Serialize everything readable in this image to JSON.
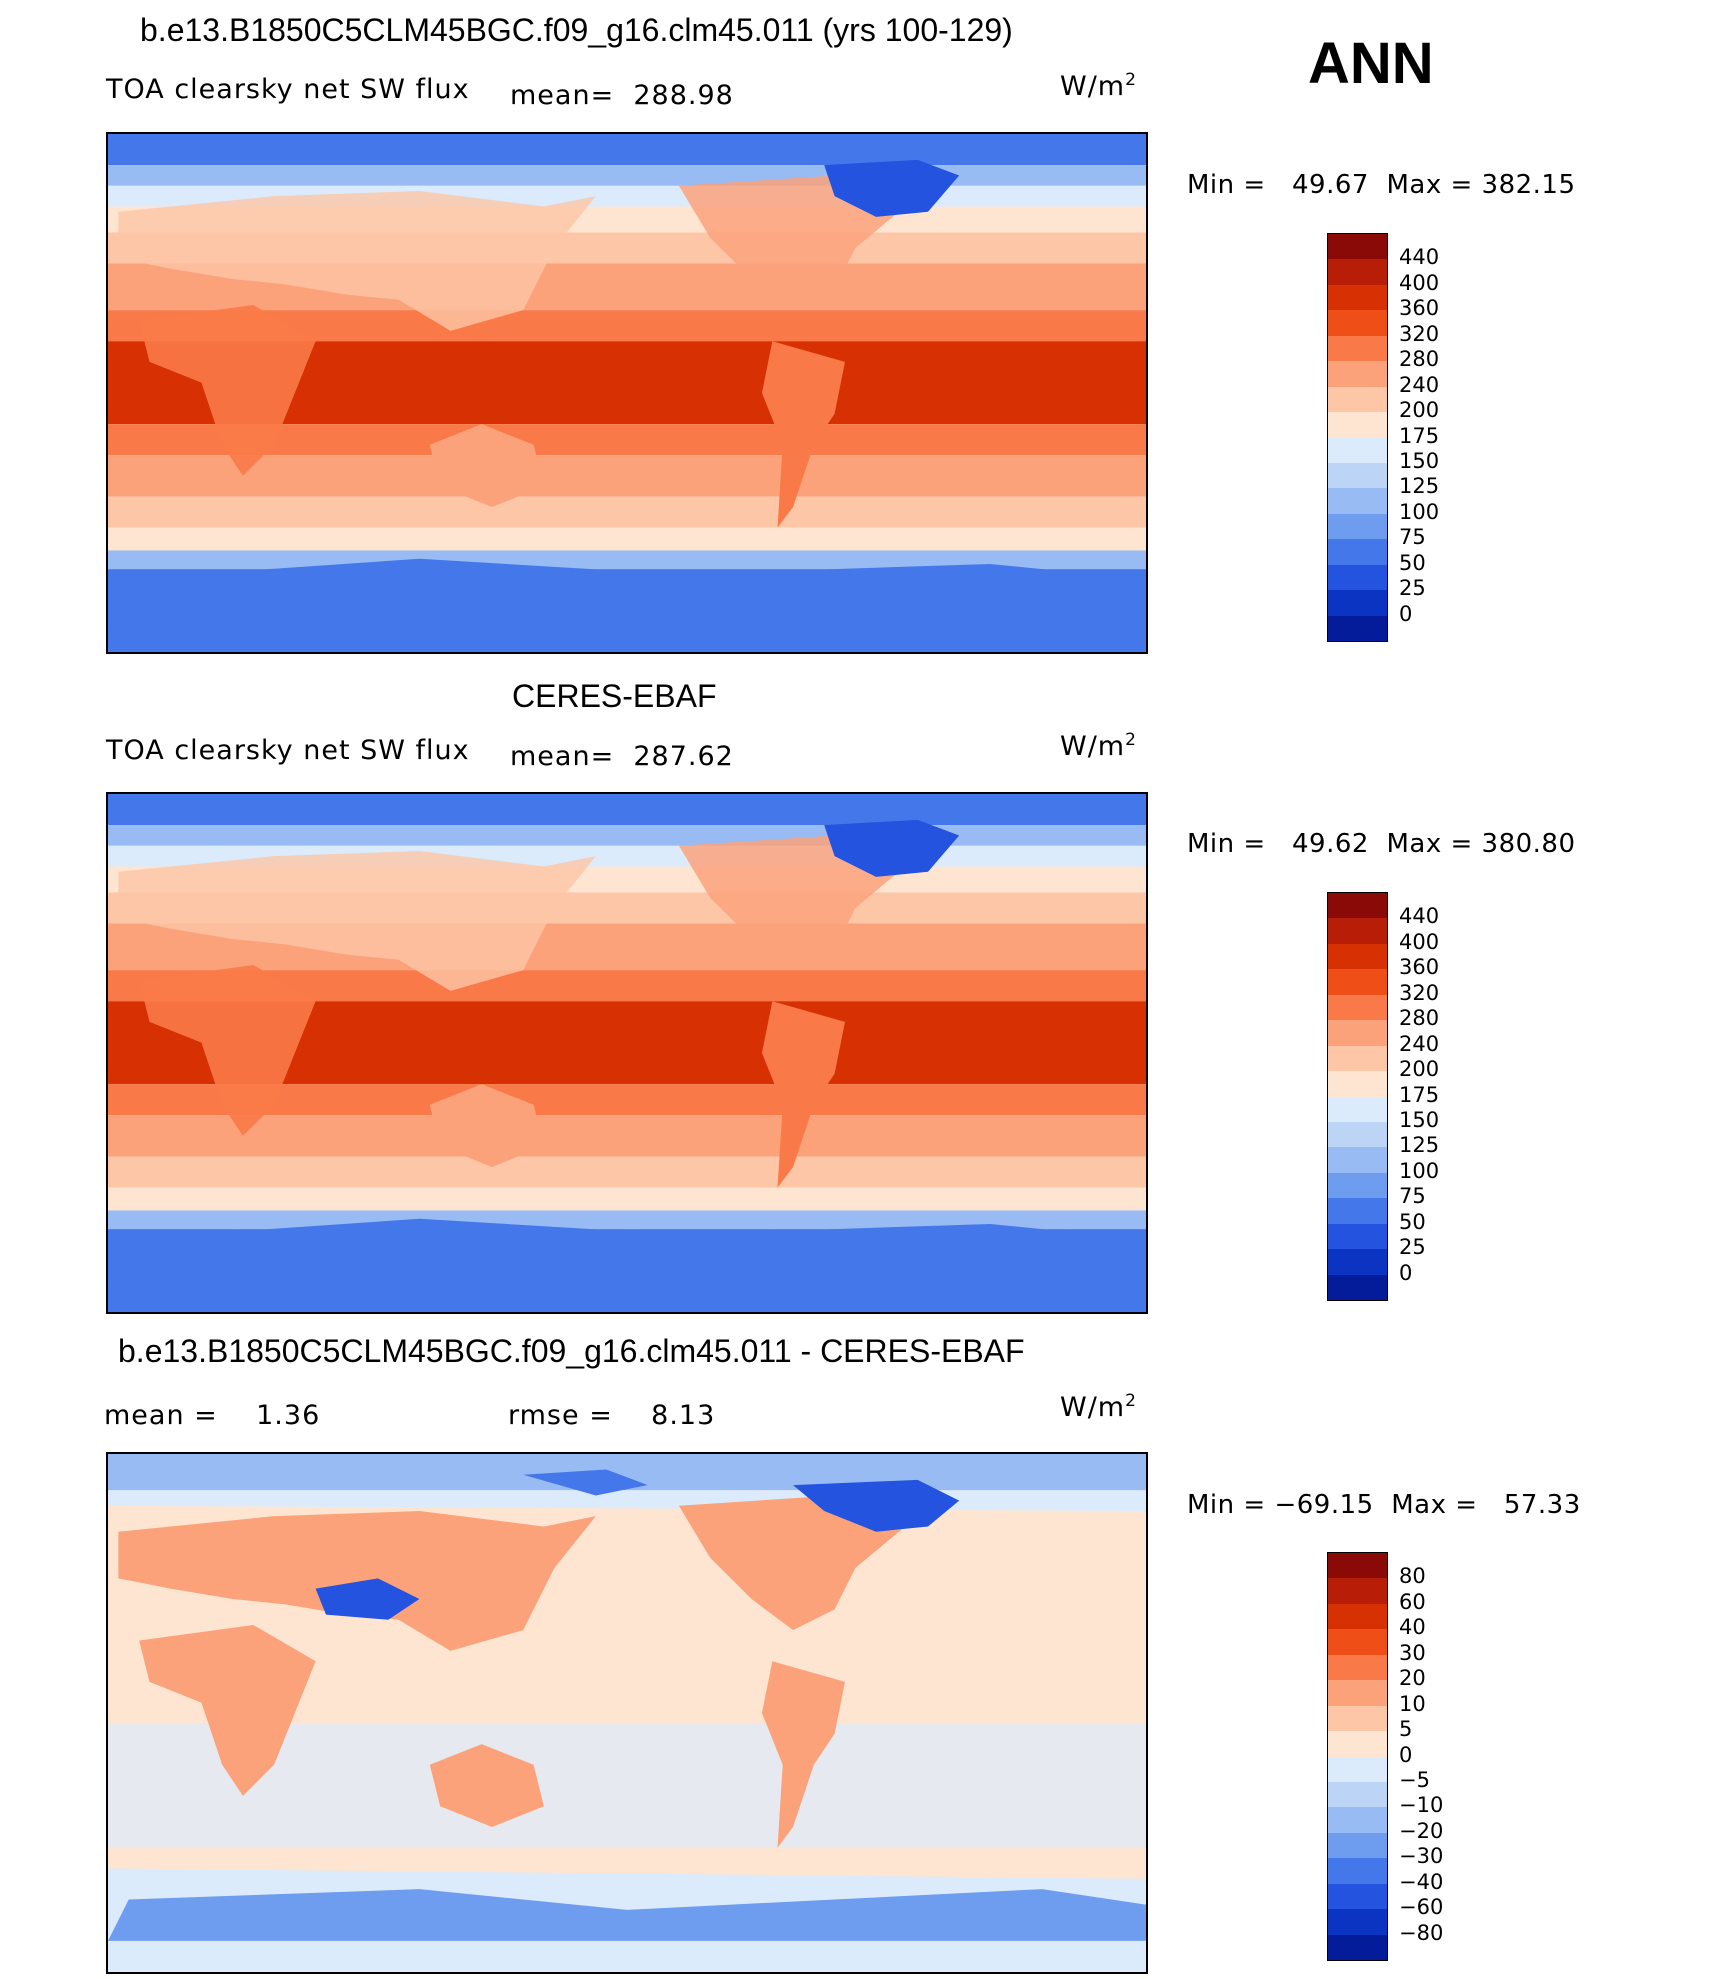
{
  "season": "ANN",
  "units_label": "W/m",
  "units_exp": "2",
  "panels": [
    {
      "title": "b.e13.B1850C5CLM45BGC.f09_g16.clm45.011 (yrs 100-129)",
      "variable": "TOA clearsky net SW flux",
      "mean_label": "mean=",
      "mean_value": "288.98",
      "min_label": "Min =",
      "min_value": "49.67",
      "max_label": "Max =",
      "max_value": "382.15",
      "scale": "abs"
    },
    {
      "title": "CERES-EBAF",
      "variable": "TOA clearsky net SW flux",
      "mean_label": "mean=",
      "mean_value": "287.62",
      "min_label": "Min =",
      "min_value": "49.62",
      "max_label": "Max =",
      "max_value": "380.80",
      "scale": "abs"
    },
    {
      "title": "b.e13.B1850C5CLM45BGC.f09_g16.clm45.011 - CERES-EBAF",
      "mean_label": "mean =",
      "mean_value": "1.36",
      "rmse_label": "rmse =",
      "rmse_value": "8.13",
      "min_label": "Min =",
      "min_value": "−69.15",
      "max_label": "Max =",
      "max_value": "57.33",
      "scale": "diff"
    }
  ],
  "colorbars": {
    "abs": {
      "labels": [
        "440",
        "400",
        "360",
        "320",
        "280",
        "240",
        "200",
        "175",
        "150",
        "125",
        "100",
        "75",
        "50",
        "25",
        "0"
      ],
      "colors": [
        "#8a0a08",
        "#b81d07",
        "#d63003",
        "#ef4f16",
        "#f97a48",
        "#fca27b",
        "#fdc6a6",
        "#fde5d2",
        "#dcebfb",
        "#bcd5f7",
        "#98bbf3",
        "#6e9cef",
        "#4477ea",
        "#2353df",
        "#0c34c2",
        "#051c9a"
      ]
    },
    "diff": {
      "labels": [
        "80",
        "60",
        "40",
        "30",
        "20",
        "10",
        "5",
        "0",
        "−5",
        "−10",
        "−20",
        "−30",
        "−40",
        "−60",
        "−80"
      ],
      "colors": [
        "#8a0a08",
        "#b81d07",
        "#d63003",
        "#ef4f16",
        "#f97a48",
        "#fca27b",
        "#fdc6a6",
        "#fde5d2",
        "#dcebfb",
        "#bcd5f7",
        "#98bbf3",
        "#6e9cef",
        "#4477ea",
        "#2353df",
        "#0c34c2",
        "#051c9a"
      ]
    }
  }
}
